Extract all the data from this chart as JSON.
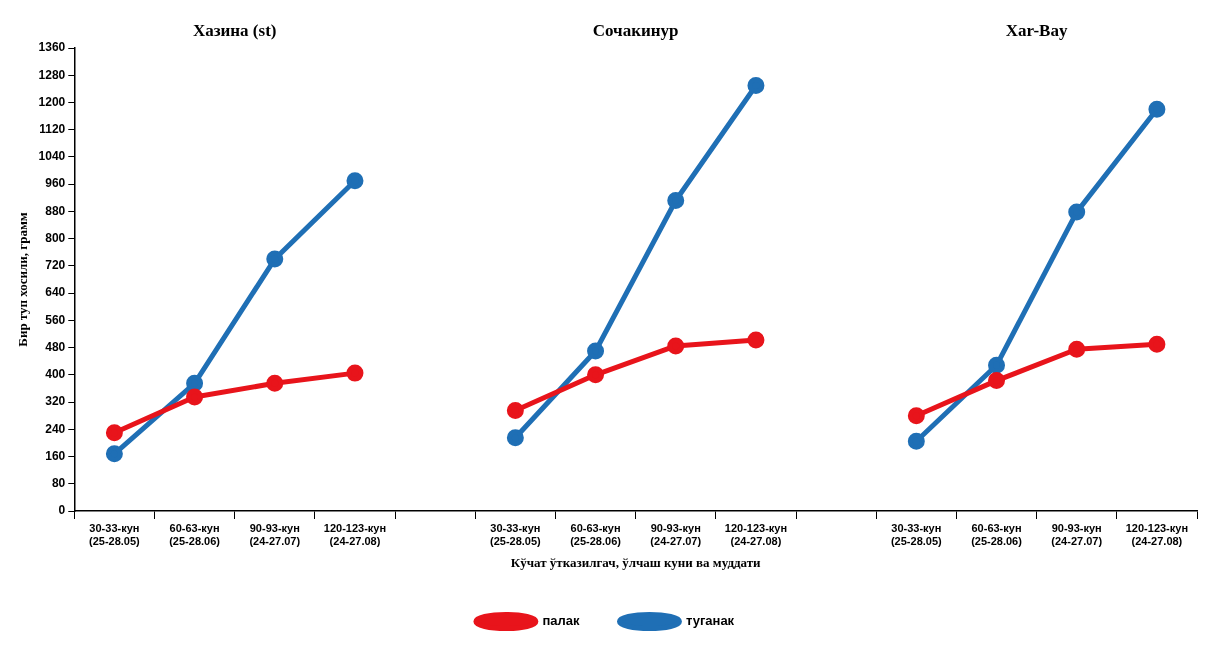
{
  "chart_data": {
    "type": "line",
    "annotations": [
      "Хазина (st)",
      "Сочакинур",
      "Xar-Bay"
    ],
    "xlabel": "Кўчат ўтказилгач, ўлчаш куни ва муддати",
    "ylabel": "Бир туп хосили, грамм",
    "categories": [
      "30-33-кун\n(25-28.05)",
      "60-63-кун\n(25-28.06)",
      "90-93-кун\n(24-27.07)",
      "120-123-кун\n(24-27.08)",
      null,
      "30-33-кун\n(25-28.05)",
      "60-63-кун\n(25-28.06)",
      "90-93-кун\n(24-27.07)",
      "120-123-кун\n(24-27.08)",
      null,
      "30-33-кун\n(25-28.05)",
      "60-63-кун\n(25-28.06)",
      "90-93-кун\n(24-27.07)",
      "120-123-кун\n(24-27.08)"
    ],
    "series": [
      {
        "name": "палак",
        "color": "#e8141b",
        "values": [
          230,
          335,
          375,
          405,
          null,
          295,
          400,
          485,
          502,
          null,
          280,
          383,
          475,
          490
        ]
      },
      {
        "name": "туганак",
        "color": "#1f6fb5",
        "values": [
          168,
          375,
          740,
          970,
          null,
          215,
          470,
          912,
          1250,
          null,
          205,
          428,
          878,
          1180
        ]
      }
    ],
    "ylim": [
      0,
      1360
    ],
    "yticks": [
      0,
      80,
      160,
      240,
      320,
      400,
      480,
      560,
      640,
      720,
      800,
      880,
      960,
      1040,
      1120,
      1200,
      1280,
      1360
    ],
    "grid": false,
    "legend": "bottom",
    "marker": "circle",
    "line_style": "solid"
  }
}
